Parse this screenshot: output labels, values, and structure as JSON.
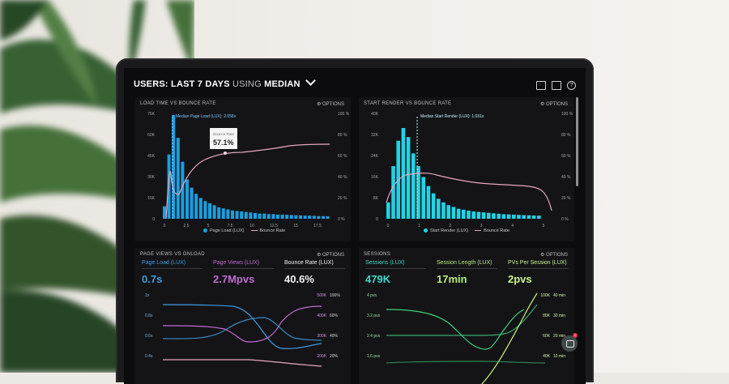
{
  "header": {
    "prefix": "USERS:",
    "period": "LAST 7 DAYS",
    "using": "USING",
    "stat": "MEDIAN"
  },
  "options_label": "OPTIONS",
  "panels": {
    "load": {
      "title": "LOAD TIME VS BOUNCE RATE",
      "annotation": "Median Page Load (LUX): 2.058s",
      "tooltip_label": "Bounce Rate",
      "tooltip_value": "57.1%",
      "legend_bars": "Page Load (LUX)",
      "legend_line": "Bounce Rate",
      "y_left": [
        "75K",
        "60K",
        "45K",
        "30K",
        "15K",
        "0"
      ],
      "y_right": [
        "100 %",
        "80 %",
        "60 %",
        "40 %",
        "20 %",
        "0 %"
      ],
      "x_ticks": [
        "0",
        "2.5",
        "5",
        "7.5",
        "10",
        "12.5",
        "15",
        "17.5"
      ]
    },
    "render": {
      "title": "START RENDER VS BOUNCE RATE",
      "annotation": "Median Start Render (LUX): 1.031s",
      "legend_bars": "Start Render (LUX)",
      "legend_line": "Bounce Rate",
      "y_left": [
        "40K",
        "32K",
        "24K",
        "16K",
        "8K",
        "0"
      ],
      "y_right": [
        "100 %",
        "80 %",
        "60 %",
        "40 %",
        "20 %",
        "0 %"
      ],
      "x_ticks": [
        "0",
        "1",
        "2",
        "3",
        "4",
        "5"
      ]
    },
    "pageviews": {
      "title": "PAGE VIEWS VS ONLOAD",
      "metrics": [
        {
          "label": "Page Load (LUX)",
          "value": "0.7s",
          "color": "#3f9be0"
        },
        {
          "label": "Page Views (LUX)",
          "value": "2.7Mpvs",
          "color": "#c46ad6"
        },
        {
          "label": "Bounce Rate (LUX)",
          "value": "40.6%",
          "color": "#f1f1f1"
        }
      ],
      "y_left": [
        "1s",
        "0.8s",
        "0.6s",
        "0.4s"
      ],
      "y_mid": [
        "500K",
        "400K",
        "300K",
        "200K"
      ],
      "y_right": [
        "100%",
        "60%",
        "40%",
        "20%"
      ]
    },
    "sessions": {
      "title": "SESSIONS",
      "metrics": [
        {
          "label": "Sessions (LUX)",
          "value": "479K",
          "color": "#3fd6c9"
        },
        {
          "label": "Session Length (LUX)",
          "value": "17min",
          "color": "#b8ee7a"
        },
        {
          "label": "PVs Per Session (LUX)",
          "value": "2pvs",
          "color": "#cdf58c"
        }
      ],
      "y_left": [
        "4 pvs",
        "3.2 pvs",
        "2.4 pvs",
        "1.6 pvs"
      ],
      "y_mid": [
        "100K",
        "80K",
        "60K",
        "40K"
      ],
      "y_right": [
        "40 min",
        "30 min",
        "20 min",
        "10 min"
      ]
    }
  },
  "colors": {
    "bars_blue": "#1a9fe0",
    "bars_cyan": "#22d3e6",
    "line_pink": "#e7a7bf",
    "line_blue": "#3f9be0",
    "line_purple": "#c46ad6",
    "line_green": "#3ecf7a",
    "line_lime": "#c8ef7e"
  },
  "chat": {
    "badge": "1"
  }
}
